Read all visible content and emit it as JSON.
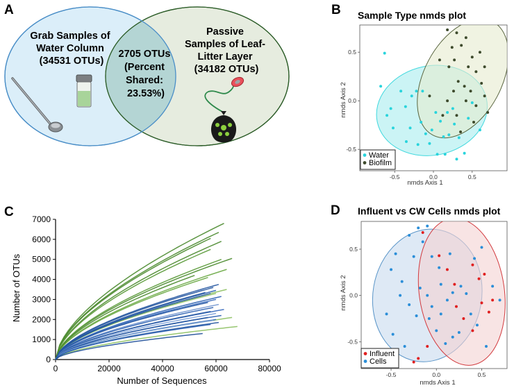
{
  "panels": {
    "A": {
      "letter": "A",
      "left_circle_lines": [
        "Grab Samples of",
        "Water Column",
        "(34531 OTUs)"
      ],
      "overlap_lines": [
        "2705 OTUs",
        "(Percent",
        "Shared:",
        "23.53%)"
      ],
      "right_circle_lines": [
        "Passive",
        "Samples of Leaf-",
        "Litter Layer",
        "(34182 OTUs)"
      ],
      "colors": {
        "left": "#dbeef9",
        "left_edge": "#4a8ec7",
        "right": "#e6ecdf",
        "right_edge": "#2e5e2a",
        "overlap": "#b4d5d4"
      }
    },
    "B": {
      "letter": "B"
    },
    "C": {
      "letter": "C"
    },
    "D": {
      "letter": "D"
    }
  },
  "chart_data": [
    {
      "id": "B",
      "type": "scatter",
      "title": "Sample Type nmds plot",
      "xlabel": "nmds Axis 1",
      "ylabel": "nmds Axis 2",
      "xlim": [
        -0.95,
        0.95
      ],
      "ylim": [
        -0.72,
        0.78
      ],
      "xticks": [
        "-0.5",
        "0.0",
        "0.5"
      ],
      "xtick_values": [
        -0.5,
        0.0,
        0.5
      ],
      "yticks": [
        "0.5",
        "0.0",
        "-0.5"
      ],
      "ytick_values": [
        0.5,
        0.0,
        -0.5
      ],
      "legend": [
        "Water",
        "Biofilm"
      ],
      "ellipses": [
        {
          "series": "Water",
          "cx": -0.02,
          "cy": -0.1,
          "rx": 0.72,
          "ry": 0.46,
          "angle": -12,
          "fill": "#a9ecef",
          "stroke": "#3fd8de"
        },
        {
          "series": "Biofilm",
          "cx": 0.38,
          "cy": 0.23,
          "rx": 0.5,
          "ry": 0.66,
          "angle": 28,
          "fill": "#e6ebcf",
          "stroke": "#5a6640"
        }
      ],
      "series": [
        {
          "name": "Water",
          "color": "#29d4dc",
          "points": [
            [
              -0.63,
              0.49
            ],
            [
              -0.68,
              0.15
            ],
            [
              -0.55,
              -0.08
            ],
            [
              -0.52,
              -0.28
            ],
            [
              -0.36,
              -0.06
            ],
            [
              -0.3,
              -0.28
            ],
            [
              -0.28,
              0.05
            ],
            [
              -0.22,
              0.1
            ],
            [
              -0.14,
              0.1
            ],
            [
              -0.16,
              -0.22
            ],
            [
              -0.1,
              -0.34
            ],
            [
              -0.05,
              -0.44
            ],
            [
              -0.02,
              -0.3
            ],
            [
              0.03,
              -0.12
            ],
            [
              0.09,
              -0.21
            ],
            [
              0.13,
              -0.37
            ],
            [
              0.15,
              -0.55
            ],
            [
              0.2,
              -0.35
            ],
            [
              0.25,
              -0.08
            ],
            [
              0.27,
              -0.24
            ],
            [
              0.33,
              -0.38
            ],
            [
              0.4,
              -0.54
            ],
            [
              0.45,
              -0.18
            ],
            [
              0.5,
              -0.02
            ],
            [
              -0.42,
              0.1
            ],
            [
              0.05,
              -0.55
            ],
            [
              -0.2,
              -0.45
            ],
            [
              0.6,
              -0.3
            ],
            [
              -0.6,
              -0.15
            ],
            [
              0.3,
              -0.6
            ],
            [
              -0.35,
              -0.42
            ],
            [
              0.18,
              -0.12
            ]
          ]
        },
        {
          "name": "Biofilm",
          "color": "#3d4a2c",
          "points": [
            [
              0.18,
              0.73
            ],
            [
              0.24,
              0.55
            ],
            [
              0.3,
              0.7
            ],
            [
              0.36,
              0.57
            ],
            [
              0.42,
              0.65
            ],
            [
              0.5,
              0.45
            ],
            [
              0.55,
              0.3
            ],
            [
              0.62,
              0.18
            ],
            [
              0.66,
              0.05
            ],
            [
              0.7,
              -0.12
            ],
            [
              0.55,
              -0.05
            ],
            [
              0.48,
              0.1
            ],
            [
              0.4,
              0.15
            ],
            [
              0.32,
              0.2
            ],
            [
              0.26,
              0.1
            ],
            [
              0.18,
              0.0
            ],
            [
              0.12,
              -0.15
            ],
            [
              0.3,
              -0.15
            ],
            [
              0.6,
              0.5
            ],
            [
              0.42,
              0.0
            ],
            [
              0.66,
              0.35
            ],
            [
              -0.05,
              0.05
            ],
            [
              0.45,
              0.35
            ],
            [
              0.2,
              0.35
            ],
            [
              0.35,
              -0.32
            ],
            [
              0.52,
              -0.22
            ],
            [
              0.08,
              0.42
            ],
            [
              0.27,
              0.42
            ]
          ]
        }
      ]
    },
    {
      "id": "C",
      "type": "line",
      "title": "",
      "xlabel": "Number of Sequences",
      "ylabel": "Number of OTUs",
      "xlim": [
        0,
        80000
      ],
      "ylim": [
        0,
        7000
      ],
      "xticks": [
        "0",
        "20000",
        "40000",
        "60000",
        "80000"
      ],
      "xtick_values": [
        0,
        20000,
        40000,
        60000,
        80000
      ],
      "yticks": [
        "0",
        "1000",
        "2000",
        "3000",
        "4000",
        "5000",
        "6000",
        "7000"
      ],
      "ytick_values": [
        0,
        1000,
        2000,
        3000,
        4000,
        5000,
        6000,
        7000
      ],
      "curve_model": "y = ymax * (x / xmax)^0.6",
      "series": [
        {
          "name": "g1",
          "color": "#4a8a2e",
          "xmax": 63000,
          "ymax": 6800
        },
        {
          "name": "g2",
          "color": "#4a8a2e",
          "xmax": 61000,
          "ymax": 6350
        },
        {
          "name": "g3",
          "color": "#4a8a2e",
          "xmax": 58000,
          "ymax": 6050
        },
        {
          "name": "g4",
          "color": "#4a8a2e",
          "xmax": 62000,
          "ymax": 5900
        },
        {
          "name": "g5",
          "color": "#5a9a38",
          "xmax": 58000,
          "ymax": 5500
        },
        {
          "name": "g6",
          "color": "#4a8a2e",
          "xmax": 66000,
          "ymax": 5050
        },
        {
          "name": "g7",
          "color": "#5a9a38",
          "xmax": 62000,
          "ymax": 5000
        },
        {
          "name": "g8",
          "color": "#6aa844",
          "xmax": 64000,
          "ymax": 4500
        },
        {
          "name": "g9",
          "color": "#6aa844",
          "xmax": 57000,
          "ymax": 4100
        },
        {
          "name": "g10",
          "color": "#4a8a2e",
          "xmax": 52000,
          "ymax": 4200
        },
        {
          "name": "g11",
          "color": "#8cc060",
          "xmax": 64000,
          "ymax": 3500
        },
        {
          "name": "g12",
          "color": "#8cc060",
          "xmax": 60000,
          "ymax": 3300
        },
        {
          "name": "g13",
          "color": "#8cc060",
          "xmax": 66000,
          "ymax": 2100
        },
        {
          "name": "g14",
          "color": "#8cc060",
          "xmax": 68000,
          "ymax": 1650
        },
        {
          "name": "b1",
          "color": "#2355a0",
          "xmax": 61000,
          "ymax": 3750
        },
        {
          "name": "b2",
          "color": "#2355a0",
          "xmax": 59000,
          "ymax": 3600
        },
        {
          "name": "b3",
          "color": "#2a5fb0",
          "xmax": 60000,
          "ymax": 3450
        },
        {
          "name": "b4",
          "color": "#2355a0",
          "xmax": 58000,
          "ymax": 3300
        },
        {
          "name": "b5",
          "color": "#2a5fb0",
          "xmax": 62000,
          "ymax": 3150
        },
        {
          "name": "b6",
          "color": "#3568bb",
          "xmax": 60000,
          "ymax": 3000
        },
        {
          "name": "b7",
          "color": "#2355a0",
          "xmax": 57000,
          "ymax": 2850
        },
        {
          "name": "b8",
          "color": "#6f93cf",
          "xmax": 61000,
          "ymax": 2750
        },
        {
          "name": "b9",
          "color": "#2a5fb0",
          "xmax": 59000,
          "ymax": 2600
        },
        {
          "name": "b10",
          "color": "#3568bb",
          "xmax": 63000,
          "ymax": 2500
        },
        {
          "name": "b11",
          "color": "#2355a0",
          "xmax": 58000,
          "ymax": 2400
        },
        {
          "name": "b12",
          "color": "#7ea2d8",
          "xmax": 60000,
          "ymax": 2300
        },
        {
          "name": "b13",
          "color": "#2a5fb0",
          "xmax": 62000,
          "ymax": 2200
        },
        {
          "name": "b14",
          "color": "#2355a0",
          "xmax": 57000,
          "ymax": 2100
        },
        {
          "name": "b15",
          "color": "#3568bb",
          "xmax": 60000,
          "ymax": 2000
        },
        {
          "name": "b16",
          "color": "#8fb0de",
          "xmax": 59000,
          "ymax": 1950
        },
        {
          "name": "b17",
          "color": "#2355a0",
          "xmax": 61000,
          "ymax": 1850
        },
        {
          "name": "b18",
          "color": "#2a5fb0",
          "xmax": 58000,
          "ymax": 1750
        },
        {
          "name": "b19",
          "color": "#1f4f99",
          "xmax": 55000,
          "ymax": 1300
        },
        {
          "name": "b20",
          "color": "#2355a0",
          "xmax": 56000,
          "ymax": 3350
        }
      ]
    },
    {
      "id": "D",
      "type": "scatter",
      "title": "Influent vs CW Cells nmds plot",
      "xlabel": "nmds Axis 1",
      "ylabel": "nmds Axis 2",
      "xlim": [
        -0.83,
        0.78
      ],
      "ylim": [
        -0.79,
        0.8
      ],
      "xticks": [
        "-0.5",
        "0.0",
        "0.5"
      ],
      "xtick_values": [
        -0.5,
        0.0,
        0.5
      ],
      "yticks": [
        "0.5",
        "0.0",
        "-0.5"
      ],
      "ytick_values": [
        0.5,
        0.0,
        -0.5
      ],
      "legend": [
        "Influent",
        "Cells"
      ],
      "ellipses": [
        {
          "series": "Cells",
          "cx": -0.1,
          "cy": 0.0,
          "rx": 0.6,
          "ry": 0.72,
          "angle": 10,
          "fill": "#c8dbee",
          "stroke": "#5a95c8"
        },
        {
          "series": "Influent",
          "cx": 0.28,
          "cy": 0.04,
          "rx": 0.47,
          "ry": 0.8,
          "angle": -8,
          "fill": "#f3d2d2",
          "stroke": "#d2393d"
        }
      ],
      "series": [
        {
          "name": "Influent",
          "color": "#e02020",
          "points": [
            [
              0.03,
              0.43
            ],
            [
              0.2,
              0.12
            ],
            [
              0.22,
              -0.12
            ],
            [
              0.4,
              0.33
            ],
            [
              0.47,
              0.18
            ],
            [
              0.5,
              -0.08
            ],
            [
              0.4,
              -0.38
            ],
            [
              0.58,
              -0.18
            ],
            [
              0.62,
              -0.05
            ],
            [
              0.53,
              0.23
            ],
            [
              -0.1,
              -0.55
            ],
            [
              -0.2,
              -0.68
            ],
            [
              0.3,
              -0.25
            ],
            [
              -0.15,
              0.68
            ],
            [
              0.12,
              0.28
            ],
            [
              -0.25,
              -0.72
            ]
          ]
        },
        {
          "name": "Cells",
          "color": "#2b8ed8",
          "points": [
            [
              -0.5,
              0.28
            ],
            [
              -0.45,
              0.45
            ],
            [
              -0.38,
              0.15
            ],
            [
              -0.3,
              0.65
            ],
            [
              -0.2,
              0.73
            ],
            [
              -0.1,
              0.75
            ],
            [
              -0.15,
              0.58
            ],
            [
              -0.25,
              0.42
            ],
            [
              -0.05,
              0.42
            ],
            [
              0.03,
              0.3
            ],
            [
              -0.3,
              -0.1
            ],
            [
              -0.22,
              -0.22
            ],
            [
              -0.18,
              0.08
            ],
            [
              -0.1,
              0.0
            ],
            [
              -0.05,
              -0.12
            ],
            [
              0.05,
              -0.2
            ],
            [
              0.12,
              -0.05
            ],
            [
              0.18,
              0.03
            ],
            [
              0.27,
              0.1
            ],
            [
              0.33,
              0.02
            ],
            [
              0.38,
              -0.2
            ],
            [
              0.45,
              -0.32
            ],
            [
              0.55,
              -0.55
            ],
            [
              0.62,
              0.1
            ],
            [
              0.7,
              -0.05
            ],
            [
              -0.48,
              -0.42
            ],
            [
              -0.35,
              -0.55
            ],
            [
              0.0,
              -0.38
            ],
            [
              0.1,
              -0.52
            ],
            [
              0.18,
              -0.45
            ],
            [
              0.05,
              0.12
            ],
            [
              -0.4,
              0.0
            ],
            [
              0.25,
              -0.4
            ],
            [
              0.42,
              0.4
            ],
            [
              -0.55,
              -0.2
            ],
            [
              0.5,
              0.52
            ],
            [
              -0.08,
              -0.25
            ],
            [
              0.15,
              0.45
            ]
          ]
        }
      ]
    }
  ]
}
